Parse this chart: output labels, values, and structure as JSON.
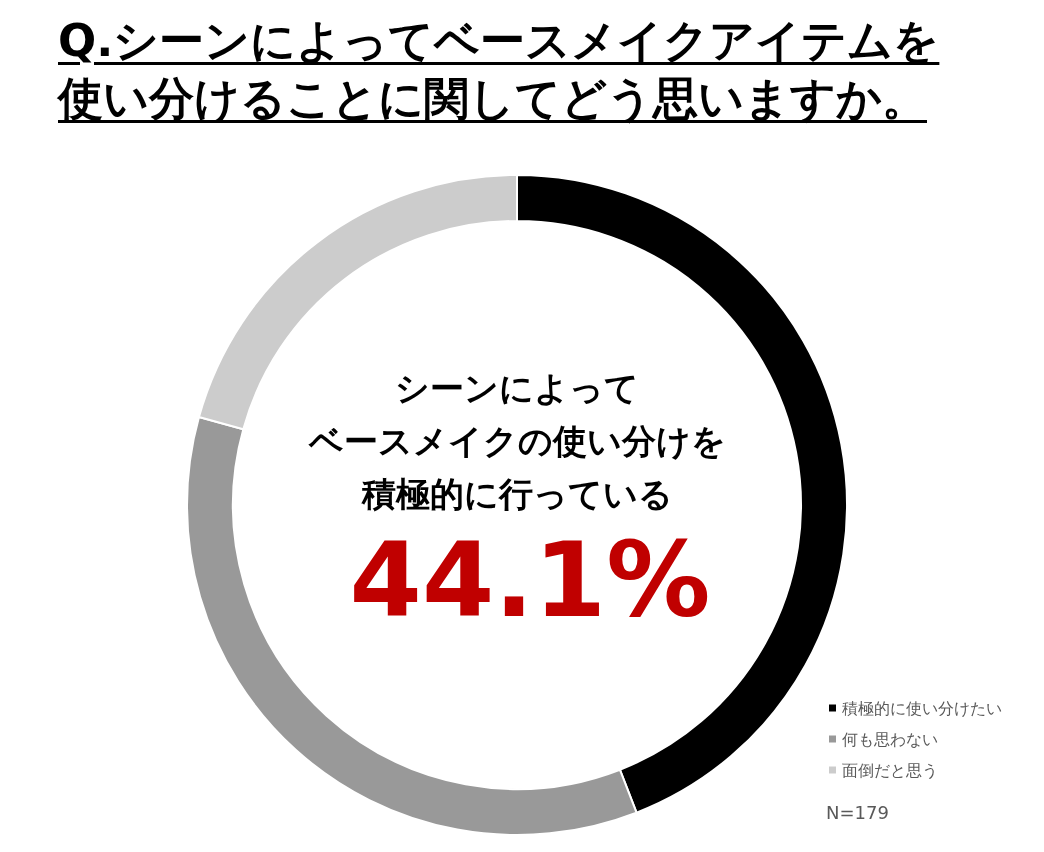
{
  "chart_data": {
    "type": "donut",
    "title": "Q.シーンによってベースメイクアイテムを使い分けることに関してどう思いますか。",
    "categories": [
      "積極的に使い分けたい",
      "何も思わない",
      "面倒だと思う"
    ],
    "values": [
      44.1,
      35.2,
      20.7
    ],
    "colors": [
      "#000000",
      "#999999",
      "#cccccc"
    ],
    "value_labels": [
      "44.1%",
      null,
      null
    ],
    "annotations": [
      "シーンによって",
      "ベースメイクの使い分けを",
      "積極的に行っている",
      "N=179"
    ],
    "legend": "bottom right"
  }
}
